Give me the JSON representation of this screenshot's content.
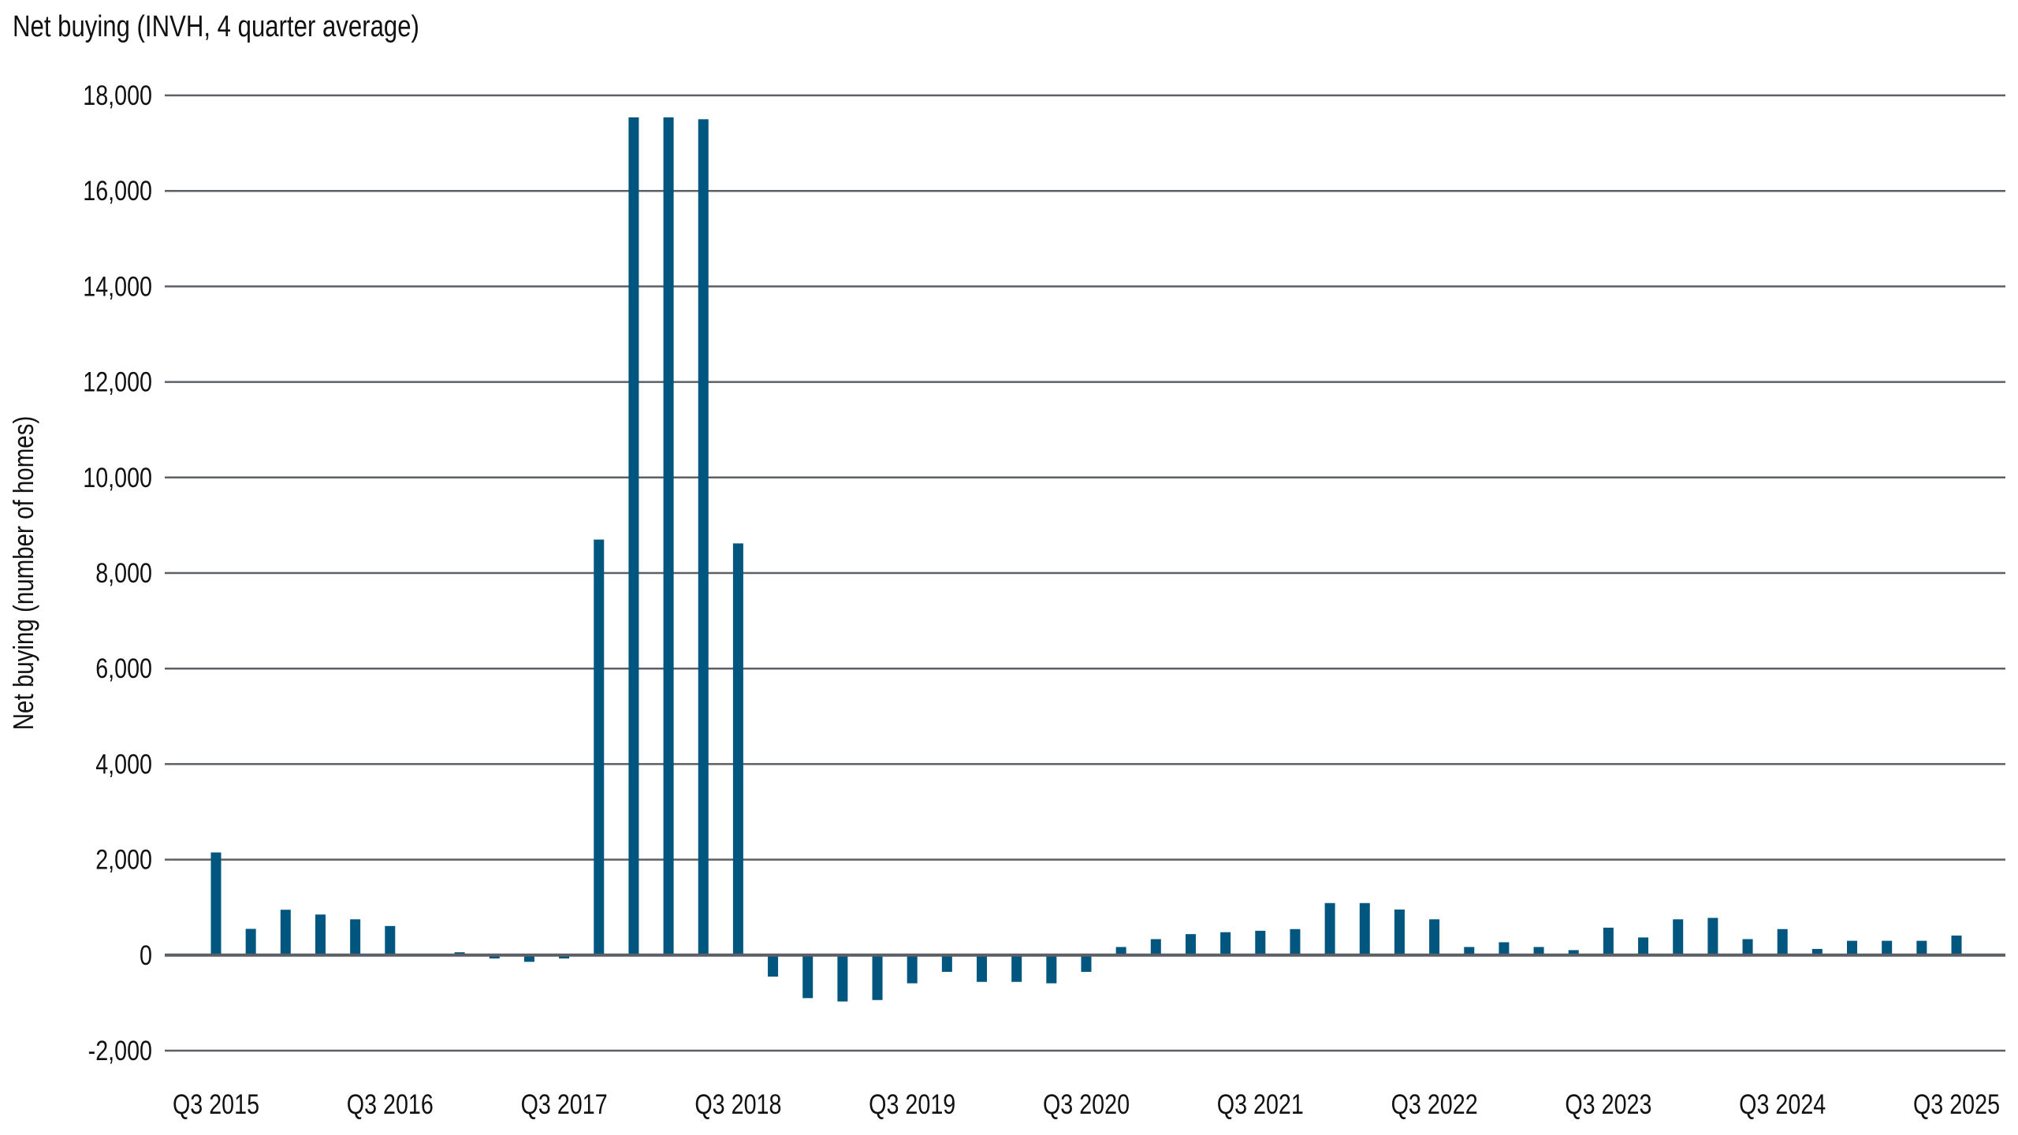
{
  "chart_data": {
    "type": "bar",
    "title": "Net buying (INVH, 4 quarter average)",
    "xlabel": "",
    "ylabel": "Net buying (number of homes)",
    "ylim": [
      -2000,
      18000
    ],
    "yticks": [
      -2000,
      0,
      2000,
      4000,
      6000,
      8000,
      10000,
      12000,
      14000,
      16000,
      18000
    ],
    "ytick_labels": [
      "-2,000",
      "0",
      "2,000",
      "4,000",
      "6,000",
      "8,000",
      "10,000",
      "12,000",
      "14,000",
      "16,000",
      "18,000"
    ],
    "grid": true,
    "legend": "none",
    "bar_color": "#00567f",
    "grid_color": "#5c5f66",
    "xtick_labels": [
      "Q3 2015",
      "Q3 2016",
      "Q3 2017",
      "Q3 2018",
      "Q3 2019",
      "Q3 2020",
      "Q3 2021",
      "Q3 2022",
      "Q3 2023",
      "Q3 2024",
      "Q3 2025"
    ],
    "xtick_every": 5,
    "values": [
      2150,
      550,
      950,
      850,
      750,
      610,
      10,
      60,
      -70,
      -140,
      -70,
      8700,
      17540,
      17540,
      17500,
      8620,
      -450,
      -900,
      -970,
      -940,
      -590,
      -350,
      -560,
      -560,
      -590,
      -350,
      170,
      335,
      440,
      480,
      510,
      545,
      1090,
      1090,
      955,
      750,
      170,
      270,
      170,
      105,
      575,
      370,
      750,
      780,
      335,
      545,
      130,
      300,
      300,
      300,
      410
    ]
  }
}
